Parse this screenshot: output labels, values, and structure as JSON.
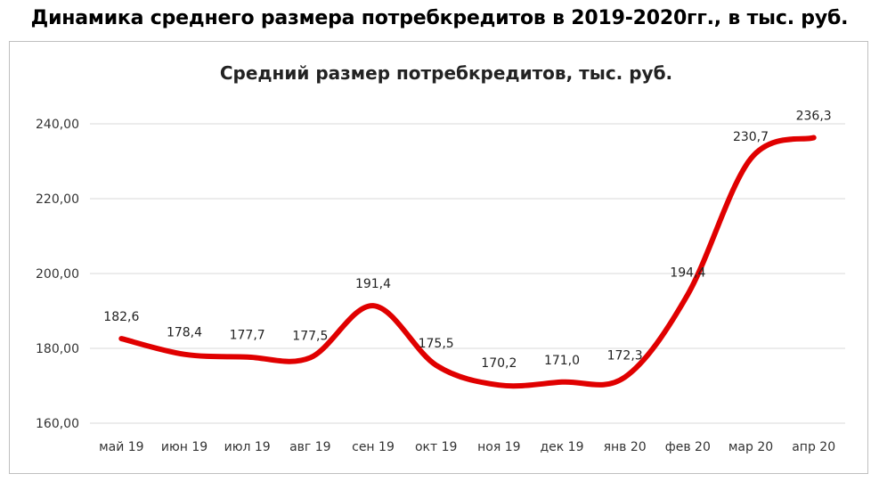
{
  "page_title": "Динамика среднего размера потребкредитов в 2019-2020гг., в тыс. руб.",
  "chart_data": {
    "type": "line",
    "title": "Средний размер потребкредитов,  тыс. руб.",
    "xlabel": "",
    "ylabel": "",
    "categories": [
      "май 19",
      "июн 19",
      "июл 19",
      "авг 19",
      "сен 19",
      "окт 19",
      "ноя 19",
      "дек 19",
      "янв 20",
      "фев 20",
      "мар 20",
      "апр 20"
    ],
    "series": [
      {
        "values": [
          182.6,
          178.4,
          177.7,
          177.5,
          191.4,
          175.5,
          170.2,
          171.0,
          172.3,
          194.4,
          230.7,
          236.3
        ],
        "labels": [
          "182,6",
          "178,4",
          "177,7",
          "177,5",
          "191,4",
          "175,5",
          "170,2",
          "171,0",
          "172,3",
          "194,4",
          "230,7",
          "236,3"
        ],
        "color": "#e00000"
      }
    ],
    "ylim": [
      160,
      240
    ],
    "yticks": [
      160,
      180,
      200,
      220,
      240
    ],
    "ytick_labels": [
      "160,00",
      "180,00",
      "200,00",
      "220,00",
      "240,00"
    ],
    "grid": true,
    "gridline_color": "#d9d9d9",
    "legend": "none",
    "smooth": true
  }
}
